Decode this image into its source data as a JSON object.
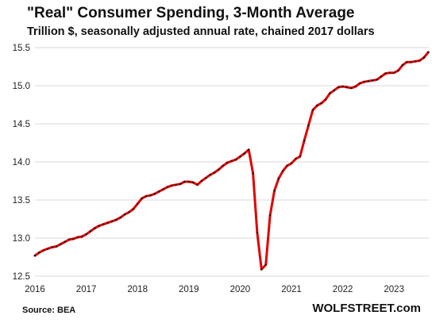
{
  "header": {
    "title": "\"Real\" Consumer Spending, 3-Month Average",
    "subtitle": "Trillion $, seasonally adjusted annual rate, chained 2017 dollars"
  },
  "footer": {
    "source": "Source: BEA",
    "brand": "WOLFSTREET.com"
  },
  "colors": {
    "line": "#e00000",
    "marker": "#1a1a1a",
    "grid": "#d9d9d9"
  },
  "chart_data": {
    "type": "line",
    "title": "\"Real\" Consumer Spending, 3-Month Average",
    "subtitle": "Trillion $, seasonally adjusted annual rate, chained 2017 dollars",
    "xlabel": "",
    "ylabel": "",
    "ylim": [
      12.5,
      15.5
    ],
    "yticks": [
      "12.5",
      "13.0",
      "13.5",
      "14.0",
      "14.5",
      "15.0",
      "15.5"
    ],
    "xticks": [
      "2016",
      "2017",
      "2018",
      "2019",
      "2020",
      "2021",
      "2022",
      "2023"
    ],
    "grid": {
      "horizontal": true,
      "vertical": false
    },
    "series": [
      {
        "values": [
          12.77,
          12.81,
          12.84,
          12.86,
          12.88,
          12.89,
          12.92,
          12.95,
          12.98,
          12.99,
          13.01,
          13.02,
          13.05,
          13.09,
          13.13,
          13.16,
          13.18,
          13.2,
          13.22,
          13.24,
          13.27,
          13.31,
          13.34,
          13.38,
          13.45,
          13.52,
          13.55,
          13.56,
          13.58,
          13.61,
          13.64,
          13.67,
          13.69,
          13.7,
          13.71,
          13.74,
          13.74,
          13.73,
          13.7,
          13.75,
          13.79,
          13.83,
          13.86,
          13.9,
          13.95,
          13.99,
          14.01,
          14.03,
          14.07,
          14.11,
          14.16,
          13.85,
          13.07,
          12.59,
          12.65,
          13.3,
          13.62,
          13.78,
          13.88,
          13.95,
          13.98,
          14.04,
          14.07,
          14.28,
          14.48,
          14.68,
          14.74,
          14.77,
          14.82,
          14.9,
          14.94,
          14.98,
          14.99,
          14.98,
          14.97,
          14.99,
          15.03,
          15.05,
          15.06,
          15.07,
          15.08,
          15.12,
          15.16,
          15.17,
          15.17,
          15.2,
          15.27,
          15.31,
          15.31,
          15.32,
          15.33,
          15.37,
          15.44
        ]
      }
    ]
  }
}
